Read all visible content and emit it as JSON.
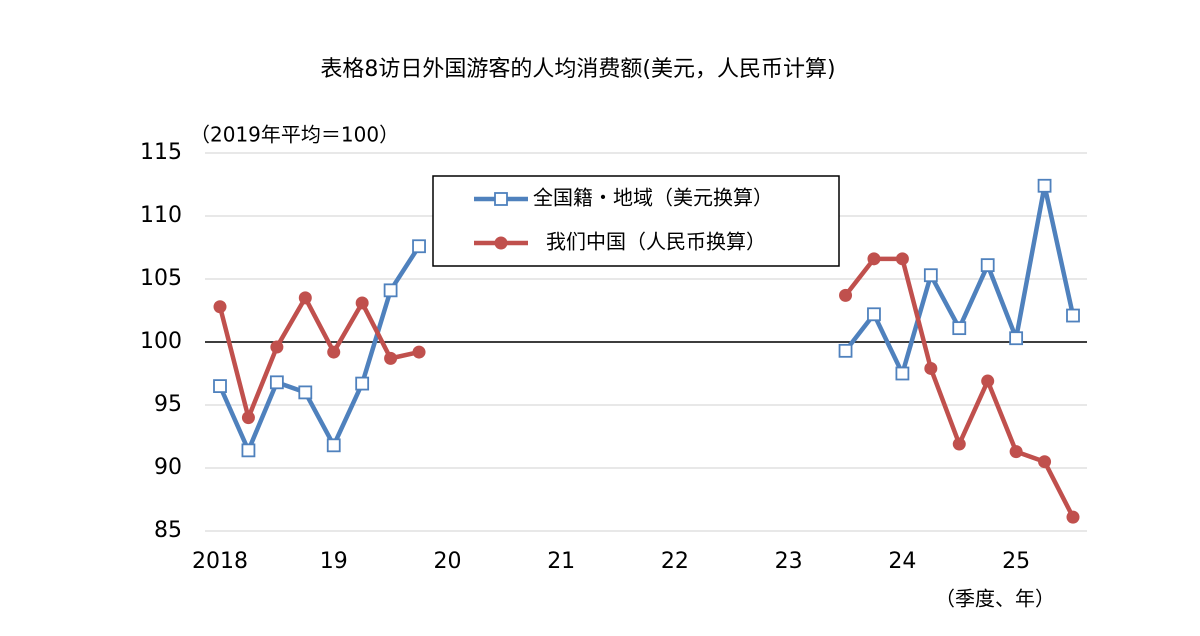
{
  "chart_data": {
    "type": "line",
    "title": "表格8访日外国游客的人均消费额(美元，人民币计算)",
    "ylabel": "（2019年平均＝100）",
    "xlabel": "（季度、年）",
    "categories": [
      "2018",
      null,
      null,
      null,
      "19",
      null,
      null,
      null,
      "20",
      null,
      null,
      null,
      "21",
      null,
      null,
      null,
      "22",
      null,
      null,
      null,
      "23",
      null,
      null,
      null,
      "24",
      null,
      null,
      null,
      "25",
      null,
      null
    ],
    "series": [
      {
        "name": "全国籍・地域（美元换算）",
        "color": "#4f81bd",
        "marker": "square",
        "values": [
          96.5,
          91.4,
          96.8,
          96.0,
          91.8,
          96.7,
          104.1,
          107.6,
          null,
          null,
          null,
          null,
          null,
          null,
          null,
          null,
          null,
          null,
          null,
          null,
          null,
          null,
          99.3,
          102.2,
          97.5,
          105.3,
          101.1,
          106.1,
          100.3,
          112.4,
          102.1
        ]
      },
      {
        "name": "我们中国（人民币换算）",
        "color": "#c0504d",
        "marker": "circle",
        "values": [
          102.8,
          94.0,
          99.6,
          103.5,
          99.2,
          103.1,
          98.7,
          99.2,
          null,
          null,
          null,
          null,
          null,
          null,
          null,
          null,
          null,
          null,
          null,
          null,
          null,
          null,
          103.7,
          106.6,
          106.6,
          97.9,
          91.9,
          96.9,
          91.3,
          90.5,
          86.1
        ]
      }
    ],
    "ylim": [
      85,
      115
    ],
    "yticks": [
      85,
      90,
      95,
      100,
      105,
      110,
      115
    ],
    "reference_line": 100,
    "grid": true
  }
}
